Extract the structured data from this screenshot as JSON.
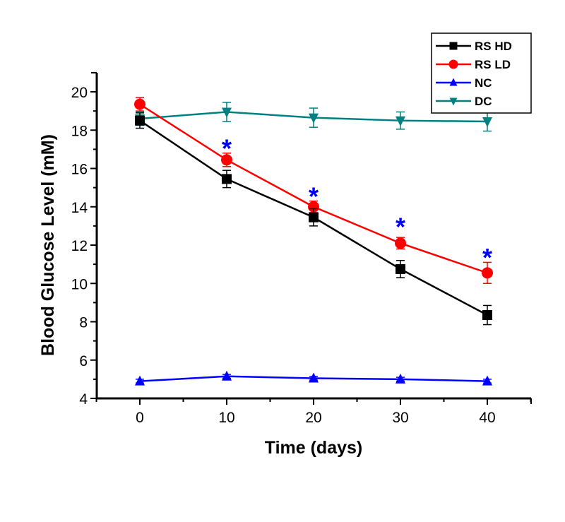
{
  "chart_data": {
    "type": "line",
    "title": "",
    "xlabel": "Time (days)",
    "ylabel": "Blood Glucose Level (mM)",
    "xlim": [
      -5,
      45
    ],
    "ylim": [
      4,
      21
    ],
    "x_ticks": [
      0,
      10,
      20,
      30,
      40
    ],
    "x_tick_labels": [
      "0",
      "10",
      "20",
      "30",
      "40"
    ],
    "y_ticks": [
      4,
      6,
      8,
      10,
      12,
      14,
      16,
      18,
      20
    ],
    "y_tick_labels": [
      "4",
      "6",
      "8",
      "10",
      "12",
      "14",
      "16",
      "18",
      "20"
    ],
    "grid": false,
    "legend_position": "top-right",
    "x": [
      0,
      10,
      20,
      30,
      40
    ],
    "series": [
      {
        "name": "RS HD",
        "color": "#000000",
        "marker": "square",
        "values": [
          18.5,
          15.45,
          13.45,
          10.75,
          8.35
        ],
        "errors": [
          0.4,
          0.45,
          0.45,
          0.45,
          0.5
        ]
      },
      {
        "name": "RS LD",
        "color": "#ff0000",
        "marker": "circle",
        "values": [
          19.35,
          16.45,
          14.0,
          12.1,
          10.55
        ],
        "errors": [
          0.35,
          0.35,
          0.3,
          0.3,
          0.55
        ]
      },
      {
        "name": "NC",
        "color": "#0000ff",
        "marker": "triangle-up",
        "values": [
          4.9,
          5.15,
          5.05,
          5.0,
          4.9
        ],
        "errors": [
          0.1,
          0.1,
          0.1,
          0.1,
          0.1
        ]
      },
      {
        "name": "DC",
        "color": "#008080",
        "marker": "triangle-down",
        "values": [
          18.6,
          18.95,
          18.65,
          18.5,
          18.45
        ],
        "errors": [
          0.35,
          0.5,
          0.5,
          0.45,
          0.5
        ]
      }
    ],
    "annotations": [
      {
        "text": "*",
        "x": 10,
        "y": 17.4,
        "color": "#0000ff"
      },
      {
        "text": "*",
        "x": 20,
        "y": 14.9,
        "color": "#0000ff"
      },
      {
        "text": "*",
        "x": 30,
        "y": 13.3,
        "color": "#0000ff"
      },
      {
        "text": "*",
        "x": 40,
        "y": 11.7,
        "color": "#0000ff"
      }
    ]
  }
}
